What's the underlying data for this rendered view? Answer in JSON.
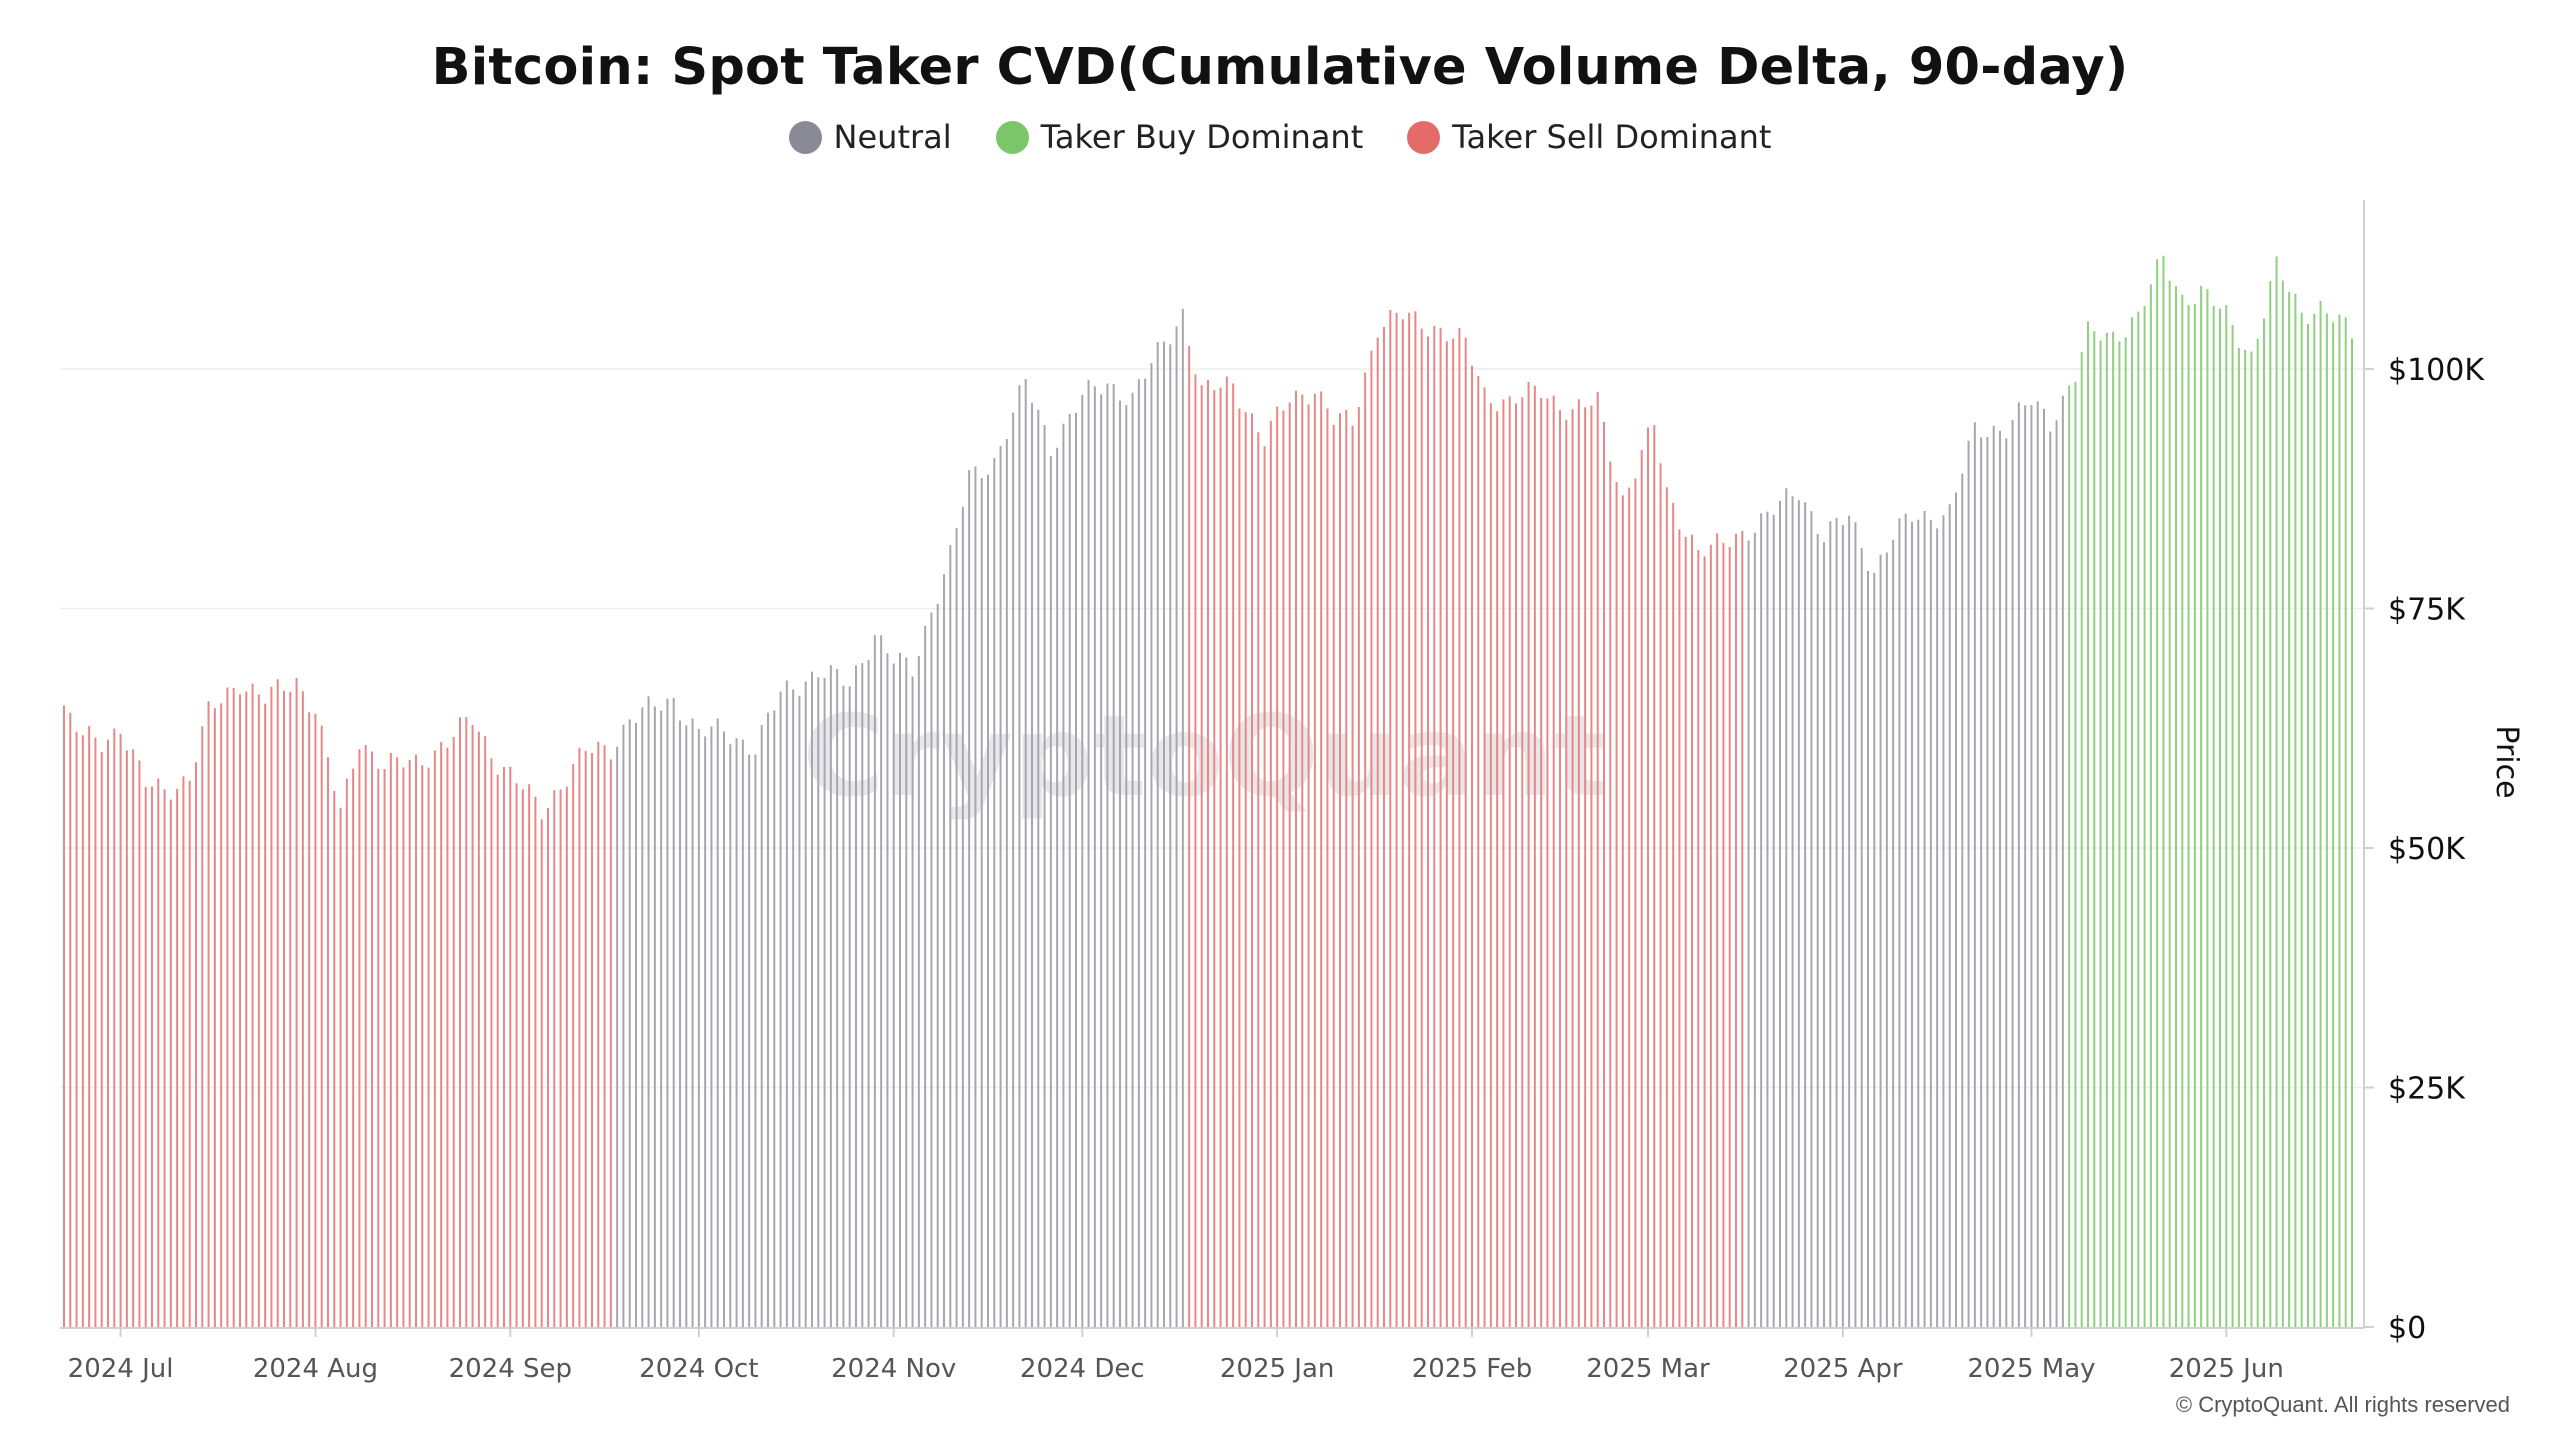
{
  "chart_data": {
    "type": "bar",
    "title": "Bitcoin: Spot Taker CVD(Cumulative Volume Delta, 90-day)",
    "ylabel": "Price",
    "ylim": [
      0,
      117000
    ],
    "yticks": [
      {
        "value": 0,
        "label": "$0"
      },
      {
        "value": 25000,
        "label": "$25K"
      },
      {
        "value": 50000,
        "label": "$50K"
      },
      {
        "value": 75000,
        "label": "$75K"
      },
      {
        "value": 100000,
        "label": "$100K"
      }
    ],
    "grid": true,
    "legend_position": "top-center",
    "x_range": [
      "2024-06-22",
      "2025-06-21"
    ],
    "xticks": [
      {
        "date": "2024-07-01",
        "label": "2024 Jul"
      },
      {
        "date": "2024-08-01",
        "label": "2024 Aug"
      },
      {
        "date": "2024-09-01",
        "label": "2024 Sep"
      },
      {
        "date": "2024-10-01",
        "label": "2024 Oct"
      },
      {
        "date": "2024-11-01",
        "label": "2024 Nov"
      },
      {
        "date": "2024-12-01",
        "label": "2024 Dec"
      },
      {
        "date": "2025-01-01",
        "label": "2025 Jan"
      },
      {
        "date": "2025-02-01",
        "label": "2025 Feb"
      },
      {
        "date": "2025-03-01",
        "label": "2025 Mar"
      },
      {
        "date": "2025-04-01",
        "label": "2025 Apr"
      },
      {
        "date": "2025-05-01",
        "label": "2025 May"
      },
      {
        "date": "2025-06-01",
        "label": "2025 Jun"
      }
    ],
    "legend": [
      {
        "name": "Neutral",
        "color": "#8a8a96"
      },
      {
        "name": "Taker Buy Dominant",
        "color": "#7cc66a"
      },
      {
        "name": "Taker Sell Dominant",
        "color": "#e56b6b"
      }
    ],
    "series_colors": {
      "Neutral": "#a6a6ae",
      "Taker Buy Dominant": "#8fd07f",
      "Taker Sell Dominant": "#e98787"
    },
    "regimes": [
      {
        "start": "2024-06-22",
        "end": "2024-09-17",
        "state": "Taker Sell Dominant"
      },
      {
        "start": "2024-09-18",
        "end": "2024-12-17",
        "state": "Neutral"
      },
      {
        "start": "2024-12-18",
        "end": "2025-03-16",
        "state": "Taker Sell Dominant"
      },
      {
        "start": "2025-03-17",
        "end": "2025-05-06",
        "state": "Neutral"
      },
      {
        "start": "2025-05-07",
        "end": "2025-06-21",
        "state": "Taker Buy Dominant"
      }
    ],
    "price_anchors": [
      [
        "2024-06-22",
        64500
      ],
      [
        "2024-06-25",
        61500
      ],
      [
        "2024-06-28",
        61000
      ],
      [
        "2024-07-01",
        62800
      ],
      [
        "2024-07-05",
        56500
      ],
      [
        "2024-07-08",
        56000
      ],
      [
        "2024-07-12",
        57500
      ],
      [
        "2024-07-15",
        64000
      ],
      [
        "2024-07-20",
        67500
      ],
      [
        "2024-07-24",
        65500
      ],
      [
        "2024-07-29",
        67500
      ],
      [
        "2024-08-01",
        64500
      ],
      [
        "2024-08-05",
        53500
      ],
      [
        "2024-08-08",
        61500
      ],
      [
        "2024-08-12",
        58500
      ],
      [
        "2024-08-17",
        59000
      ],
      [
        "2024-08-22",
        61000
      ],
      [
        "2024-08-26",
        63500
      ],
      [
        "2024-08-30",
        59000
      ],
      [
        "2024-09-06",
        54000
      ],
      [
        "2024-09-10",
        57500
      ],
      [
        "2024-09-13",
        60000
      ],
      [
        "2024-09-17",
        60500
      ],
      [
        "2024-09-20",
        63500
      ],
      [
        "2024-09-27",
        65500
      ],
      [
        "2024-10-01",
        62000
      ],
      [
        "2024-10-05",
        62200
      ],
      [
        "2024-10-10",
        60500
      ],
      [
        "2024-10-14",
        66000
      ],
      [
        "2024-10-20",
        68500
      ],
      [
        "2024-10-25",
        67000
      ],
      [
        "2024-10-29",
        72500
      ],
      [
        "2024-11-01",
        69500
      ],
      [
        "2024-11-04",
        68500
      ],
      [
        "2024-11-07",
        75000
      ],
      [
        "2024-11-10",
        80500
      ],
      [
        "2024-11-13",
        88500
      ],
      [
        "2024-11-17",
        90500
      ],
      [
        "2024-11-22",
        98500
      ],
      [
        "2024-11-26",
        92000
      ],
      [
        "2024-12-01",
        97000
      ],
      [
        "2024-12-05",
        98500
      ],
      [
        "2024-12-09",
        97000
      ],
      [
        "2024-12-13",
        101500
      ],
      [
        "2024-12-17",
        106000
      ],
      [
        "2024-12-20",
        97500
      ],
      [
        "2024-12-25",
        98500
      ],
      [
        "2024-12-30",
        92500
      ],
      [
        "2025-01-03",
        97000
      ],
      [
        "2025-01-07",
        98000
      ],
      [
        "2025-01-10",
        94500
      ],
      [
        "2025-01-13",
        94500
      ],
      [
        "2025-01-17",
        104500
      ],
      [
        "2025-01-21",
        105500
      ],
      [
        "2025-01-26",
        104500
      ],
      [
        "2025-01-31",
        102500
      ],
      [
        "2025-02-03",
        97500
      ],
      [
        "2025-02-07",
        96500
      ],
      [
        "2025-02-12",
        97800
      ],
      [
        "2025-02-17",
        95500
      ],
      [
        "2025-02-21",
        96500
      ],
      [
        "2025-02-25",
        86500
      ],
      [
        "2025-03-02",
        94000
      ],
      [
        "2025-03-04",
        87000
      ],
      [
        "2025-03-09",
        81000
      ],
      [
        "2025-03-11",
        81000
      ],
      [
        "2025-03-16",
        83000
      ],
      [
        "2025-03-20",
        84500
      ],
      [
        "2025-03-25",
        87500
      ],
      [
        "2025-03-29",
        82500
      ],
      [
        "2025-04-02",
        84500
      ],
      [
        "2025-04-06",
        79000
      ],
      [
        "2025-04-09",
        82500
      ],
      [
        "2025-04-12",
        84500
      ],
      [
        "2025-04-18",
        85000
      ],
      [
        "2025-04-22",
        93500
      ],
      [
        "2025-04-27",
        94000
      ],
      [
        "2025-05-01",
        96500
      ],
      [
        "2025-05-04",
        94500
      ],
      [
        "2025-05-08",
        99500
      ],
      [
        "2025-05-10",
        103500
      ],
      [
        "2025-05-14",
        103500
      ],
      [
        "2025-05-18",
        105500
      ],
      [
        "2025-05-22",
        111500
      ],
      [
        "2025-05-25",
        107500
      ],
      [
        "2025-05-28",
        108000
      ],
      [
        "2025-06-01",
        105500
      ],
      [
        "2025-06-05",
        101500
      ],
      [
        "2025-06-09",
        110500
      ],
      [
        "2025-06-13",
        106000
      ],
      [
        "2025-06-16",
        106500
      ],
      [
        "2025-06-21",
        103500
      ]
    ]
  },
  "header": {
    "title": "Bitcoin: Spot Taker CVD(Cumulative Volume Delta, 90-day)",
    "legend": [
      {
        "label": "Neutral",
        "color": "#8a8a96"
      },
      {
        "label": "Taker Buy Dominant",
        "color": "#7cc66a"
      },
      {
        "label": "Taker Sell Dominant",
        "color": "#e56b6b"
      }
    ]
  },
  "watermark": "CryptoQuant",
  "footer": {
    "copyright": "© CryptoQuant. All rights reserved"
  }
}
